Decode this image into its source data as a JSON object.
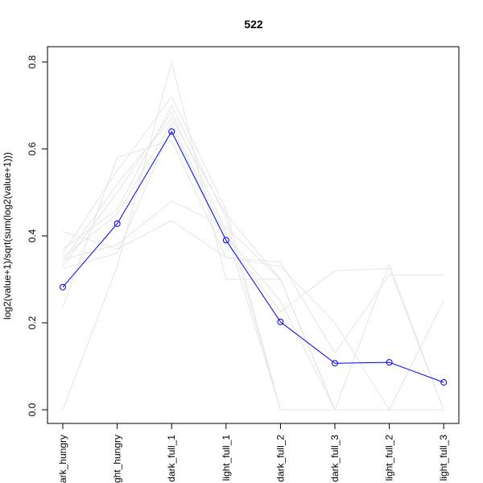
{
  "chart_data": {
    "type": "line",
    "title": "522",
    "xlabel": "",
    "ylabel": "log2(value+1)/sqrt(sum(log2(value+1)))",
    "categories": [
      "dark_hungry",
      "light_hungry",
      "dark_full_1",
      "light_full_1",
      "dark_full_2",
      "dark_full_3",
      "light_full_2",
      "light_full_3"
    ],
    "ylim": [
      0.0,
      0.8
    ],
    "yticks": [
      0.0,
      0.2,
      0.4,
      0.6,
      0.8
    ],
    "ytick_labels": [
      "0.0",
      "0.2",
      "0.4",
      "0.6",
      "0.8"
    ],
    "highlight_color": "#0000ff",
    "background_color": "#e6e6e6",
    "highlight_series": {
      "values": [
        0.282,
        0.428,
        0.64,
        0.39,
        0.202,
        0.107,
        0.109,
        0.063
      ]
    },
    "background_series": [
      {
        "values": [
          0.0,
          0.33,
          0.8,
          0.3,
          0.3,
          0.0,
          0.0,
          0.0
        ]
      },
      {
        "values": [
          0.235,
          0.58,
          0.62,
          0.35,
          0.34,
          0.13,
          0.31,
          0.31
        ]
      },
      {
        "values": [
          0.36,
          0.55,
          0.72,
          0.46,
          0.0,
          0.0,
          0.0,
          0.0
        ]
      },
      {
        "values": [
          0.41,
          0.37,
          0.435,
          0.35,
          0.33,
          0.2,
          0.0,
          0.0
        ]
      },
      {
        "values": [
          0.345,
          0.38,
          0.48,
          0.42,
          0.3,
          0.0,
          0.0,
          0.0
        ]
      },
      {
        "values": [
          0.33,
          0.5,
          0.685,
          0.41,
          0.0,
          0.0,
          0.0,
          0.0
        ]
      },
      {
        "values": [
          0.325,
          0.36,
          0.65,
          0.39,
          0.225,
          0.32,
          0.325,
          0.0
        ]
      },
      {
        "values": [
          0.37,
          0.46,
          0.7,
          0.44,
          0.0,
          0.0,
          0.0,
          0.0
        ]
      },
      {
        "values": [
          0.35,
          0.45,
          0.66,
          0.4,
          0.25,
          0.0,
          0.335,
          0.0
        ]
      },
      {
        "values": [
          0.34,
          0.52,
          0.67,
          0.45,
          0.3,
          0.0,
          0.0,
          0.25
        ]
      }
    ]
  }
}
